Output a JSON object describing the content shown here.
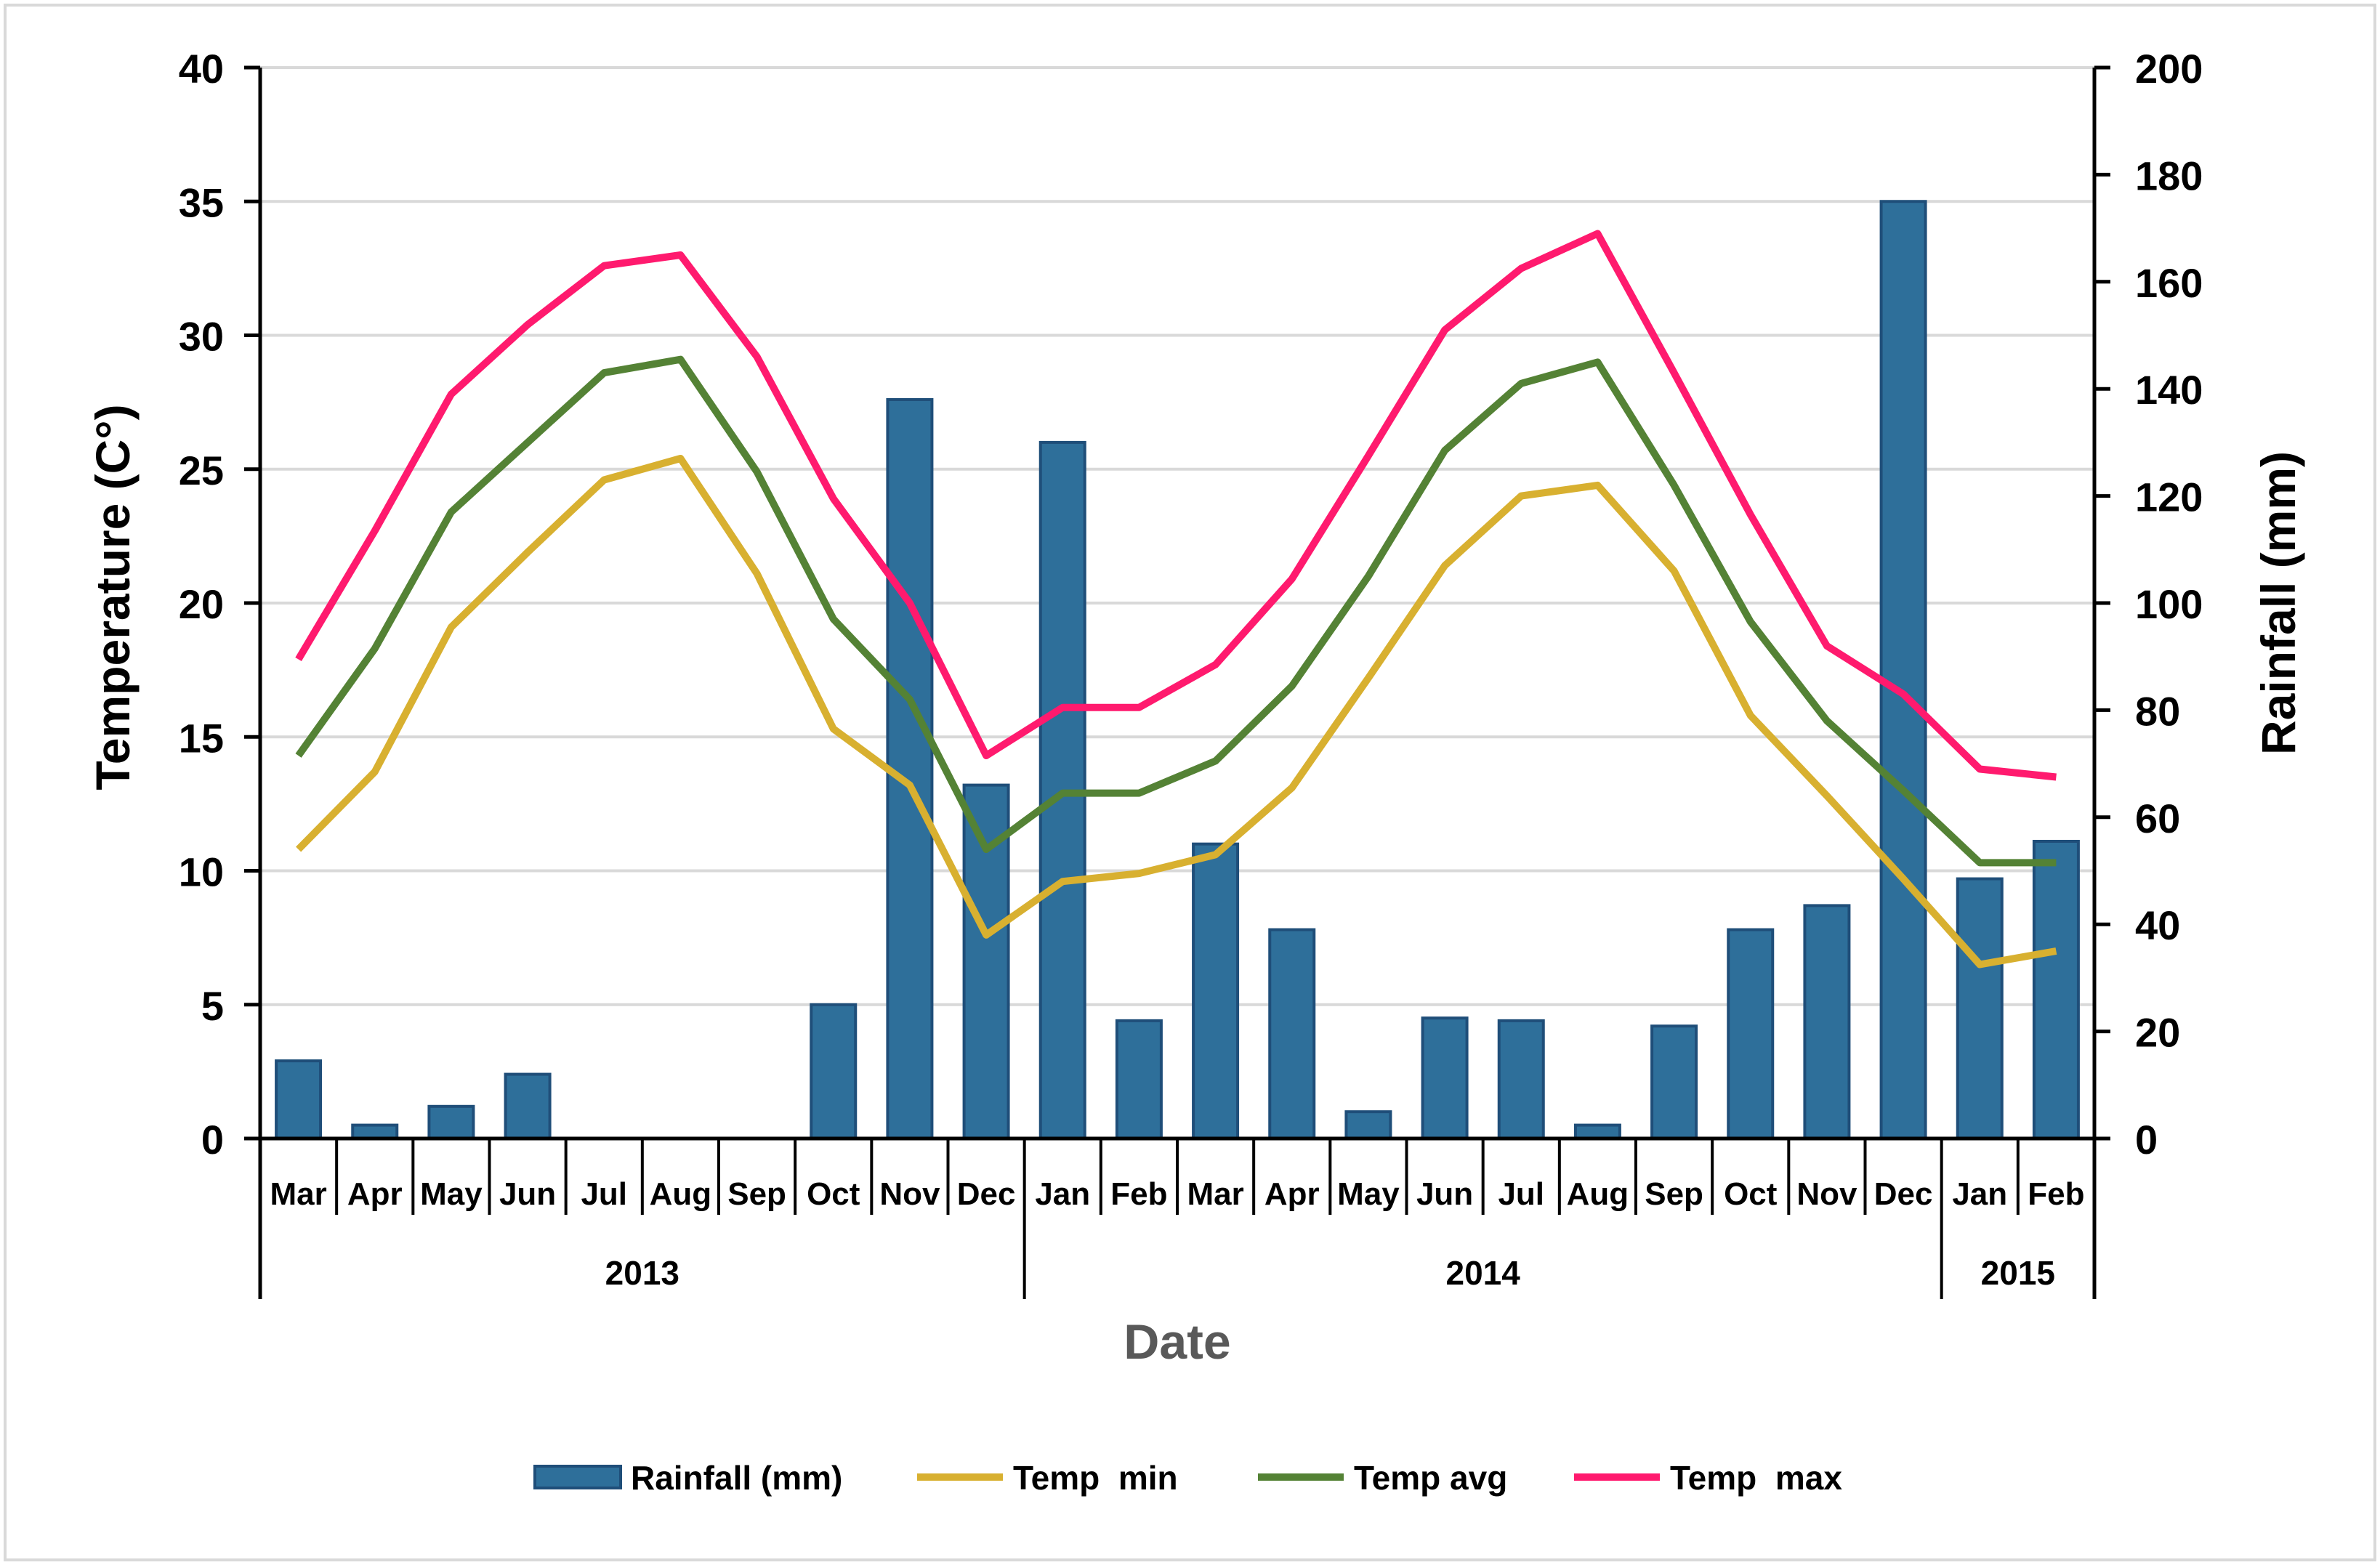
{
  "chart_data": {
    "type": "bar+line",
    "title": "",
    "xlabel": "Date",
    "ylabel_left": "Temperature (C°)",
    "ylabel_right": "Rainfall (mm)",
    "ylim_left": [
      0,
      40
    ],
    "ylim_right": [
      0,
      200
    ],
    "yticks_left": [
      "0",
      "5",
      "10",
      "15",
      "20",
      "25",
      "30",
      "35",
      "40"
    ],
    "yticks_right": [
      "0",
      "20",
      "40",
      "60",
      "80",
      "100",
      "120",
      "140",
      "160",
      "180",
      "200"
    ],
    "grid": true,
    "categories": [
      "Mar",
      "Apr",
      "May",
      "Jun",
      "Jul",
      "Aug",
      "Sep",
      "Oct",
      "Nov",
      "Dec",
      "Jan",
      "Feb",
      "Mar",
      "Apr",
      "May",
      "Jun",
      "Jul",
      "Aug",
      "Sep",
      "Oct",
      "Nov",
      "Dec",
      "Jan",
      "Feb"
    ],
    "year_groups": [
      {
        "label": "2013",
        "start": 0,
        "end": 9
      },
      {
        "label": "2014",
        "start": 10,
        "end": 21
      },
      {
        "label": "2015",
        "start": 22,
        "end": 23
      }
    ],
    "series": [
      {
        "name": "Rainfall (mm)",
        "kind": "bar",
        "axis": "right",
        "color": "#2e6f9a",
        "edge": "#1f4e79",
        "values": [
          14.5,
          2.5,
          6,
          12,
          0,
          0,
          0,
          25,
          138,
          66,
          130,
          22,
          55,
          39,
          5,
          22.5,
          22,
          2.5,
          21,
          39,
          43.5,
          175,
          48.5,
          55.5
        ]
      },
      {
        "name": "Temp  min",
        "kind": "line",
        "axis": "left",
        "color": "#d8b030",
        "values": [
          10.8,
          13.7,
          19.1,
          21.9,
          24.6,
          25.4,
          21.1,
          15.3,
          13.2,
          7.6,
          9.6,
          9.9,
          10.6,
          13.1,
          17.2,
          21.4,
          24.0,
          24.4,
          21.2,
          15.8,
          12.8,
          9.7,
          6.5,
          7.0
        ]
      },
      {
        "name": "Temp avg",
        "kind": "line",
        "axis": "left",
        "color": "#548235",
        "values": [
          14.3,
          18.3,
          23.4,
          26.0,
          28.6,
          29.1,
          24.9,
          19.4,
          16.4,
          10.8,
          12.9,
          12.9,
          14.1,
          16.9,
          21.0,
          25.7,
          28.2,
          29.0,
          24.4,
          19.3,
          15.6,
          13.0,
          10.3,
          10.3
        ]
      },
      {
        "name": "Temp  max",
        "kind": "line",
        "axis": "left",
        "color": "#ff1a6e",
        "values": [
          17.9,
          22.7,
          27.8,
          30.4,
          32.6,
          33.0,
          29.2,
          23.9,
          20.0,
          14.3,
          16.1,
          16.1,
          17.7,
          20.9,
          25.5,
          30.2,
          32.5,
          33.8,
          28.6,
          23.3,
          18.4,
          16.6,
          13.8,
          13.5
        ]
      }
    ],
    "legend_position": "bottom"
  }
}
